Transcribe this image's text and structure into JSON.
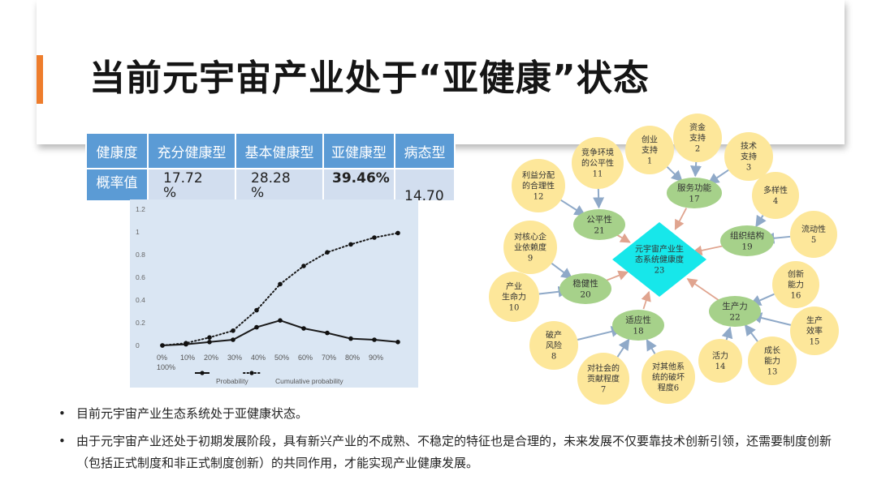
{
  "title": "当前元宇宙产业处于“亚健康”状态",
  "colors": {
    "accent": "#ee7d2c",
    "table_header": "#5b9bd5",
    "table_row": "#d2deef",
    "node_yellow": "#fde79a",
    "node_green": "#a6d18a",
    "node_cyan": "#17e7ea"
  },
  "table": {
    "headers": [
      "健康度",
      "充分健康型",
      "基本健康型",
      "亚健康型",
      "病态型"
    ],
    "row_label": "概率值",
    "values": [
      "17.72",
      "28.28",
      "39.46%",
      ""
    ],
    "value_suffixes": [
      "%",
      "%",
      "",
      ""
    ],
    "overflow_value": "14.70"
  },
  "chart_data": {
    "type": "line",
    "x_ticks": [
      "0%",
      "10%",
      "20%",
      "30%",
      "40%",
      "50%",
      "60%",
      "70%",
      "80%",
      "90%"
    ],
    "x_extra_label": "100%",
    "y_ticks": [
      "0",
      "0.2",
      "0.4",
      "0.6",
      "0.8",
      "1",
      "1.2"
    ],
    "ylim": [
      0,
      1.2
    ],
    "series": [
      {
        "name": "Probability",
        "style": "solid",
        "values": [
          0,
          0.01,
          0.03,
          0.05,
          0.16,
          0.22,
          0.15,
          0.11,
          0.06,
          0.05,
          0.03
        ]
      },
      {
        "name": "Cumulative probability",
        "style": "dotted",
        "values": [
          0,
          0.02,
          0.07,
          0.13,
          0.31,
          0.54,
          0.7,
          0.82,
          0.89,
          0.95,
          0.99
        ]
      }
    ],
    "legend_placement": "bottom"
  },
  "diagram": {
    "center": {
      "text": [
        "元宇宙产业生",
        "态系统健康度",
        "23"
      ]
    },
    "mid_nodes": [
      {
        "id": "17",
        "text": [
          "服务功能",
          "17"
        ]
      },
      {
        "id": "21",
        "text": [
          "公平性",
          "21"
        ]
      },
      {
        "id": "19",
        "text": [
          "组织结构",
          "19"
        ]
      },
      {
        "id": "20",
        "text": [
          "稳健性",
          "20"
        ]
      },
      {
        "id": "18",
        "text": [
          "适应性",
          "18"
        ]
      },
      {
        "id": "22",
        "text": [
          "生产力",
          "22"
        ]
      }
    ],
    "leaf_nodes": [
      {
        "id": "1",
        "text": [
          "创业",
          "支持",
          "1"
        ]
      },
      {
        "id": "2",
        "text": [
          "资金",
          "支持",
          "2"
        ]
      },
      {
        "id": "3",
        "text": [
          "技术",
          "支持",
          "3"
        ]
      },
      {
        "id": "11",
        "text": [
          "竞争环境",
          "的公平性",
          "11"
        ]
      },
      {
        "id": "12",
        "text": [
          "利益分配",
          "的合理性",
          "12"
        ]
      },
      {
        "id": "4",
        "text": [
          "多样性",
          "4"
        ]
      },
      {
        "id": "5",
        "text": [
          "流动性",
          "5"
        ]
      },
      {
        "id": "9",
        "text": [
          "对核心企",
          "业依赖度",
          "9"
        ]
      },
      {
        "id": "10",
        "text": [
          "产业",
          "生命力",
          "10"
        ]
      },
      {
        "id": "16",
        "text": [
          "创新",
          "能力",
          "16"
        ]
      },
      {
        "id": "15",
        "text": [
          "生产",
          "效率",
          "15"
        ]
      },
      {
        "id": "8",
        "text": [
          "破产",
          "风险",
          "8"
        ]
      },
      {
        "id": "7",
        "text": [
          "对社会的",
          "贡献程度",
          "7"
        ]
      },
      {
        "id": "6",
        "text": [
          "对其他系",
          "统的破坏",
          "程度6"
        ]
      },
      {
        "id": "14",
        "text": [
          "活力",
          "14"
        ]
      },
      {
        "id": "13",
        "text": [
          "成长",
          "能力",
          "13"
        ]
      }
    ]
  },
  "bullets": [
    "目前元宇宙产业生态系统处于亚健康状态。",
    "由于元宇宙产业还处于初期发展阶段，具有新兴产业的不成熟、不稳定的特征也是合理的，未来发展不仅要靠技术创新引领，还需要制度创新（包括正式制度和非正式制度创新）的共同作用，才能实现产业健康发展。"
  ],
  "bullet_symbol": "•"
}
